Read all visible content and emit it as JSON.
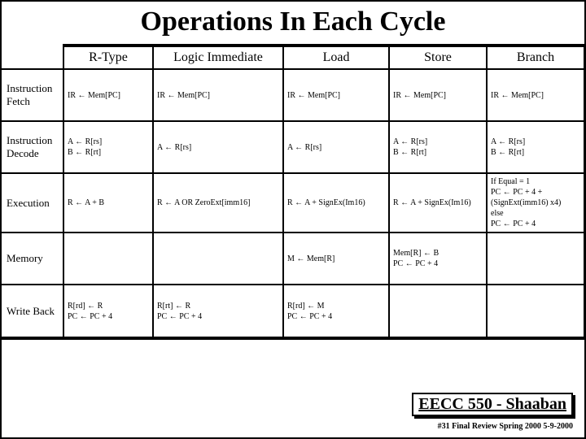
{
  "title": "Operations In Each Cycle",
  "columns": [
    "R-Type",
    "Logic Immediate",
    "Load",
    "Store",
    "Branch"
  ],
  "rows": [
    {
      "label": "Instruction Fetch",
      "cells": [
        "IR ← Mem[PC]",
        "IR ← Mem[PC]",
        "IR ← Mem[PC]",
        "IR ← Mem[PC]",
        "IR ← Mem[PC]"
      ]
    },
    {
      "label": "Instruction Decode",
      "cells": [
        "A ← R[rs]\nB ← R[rt]",
        "A ← R[rs]",
        "A ← R[rs]",
        "A ← R[rs]\nB ← R[rt]",
        "A ← R[rs]\nB ← R[rt]"
      ]
    },
    {
      "label": "Execution",
      "cells": [
        "R ← A + B",
        "R ← A OR ZeroExt[imm16]",
        "R ← A + SignEx(Im16)",
        "R ← A + SignEx(Im16)",
        "If Equal = 1\nPC ← PC + 4 +\n(SignExt(imm16) x4)\nelse\nPC ← PC + 4"
      ]
    },
    {
      "label": "Memory",
      "cells": [
        "",
        "",
        "M ← Mem[R]",
        "Mem[R] ← B\nPC ← PC + 4",
        ""
      ]
    },
    {
      "label": "Write Back",
      "cells": [
        "R[rd] ← R\nPC ← PC + 4",
        "R[rt] ← R\nPC ← PC + 4",
        "R[rd] ← M\nPC ← PC + 4",
        "",
        ""
      ]
    }
  ],
  "footer": "EECC 550 - Shaaban",
  "subfooter": "#31  Final Review  Spring 2000  5-9-2000"
}
